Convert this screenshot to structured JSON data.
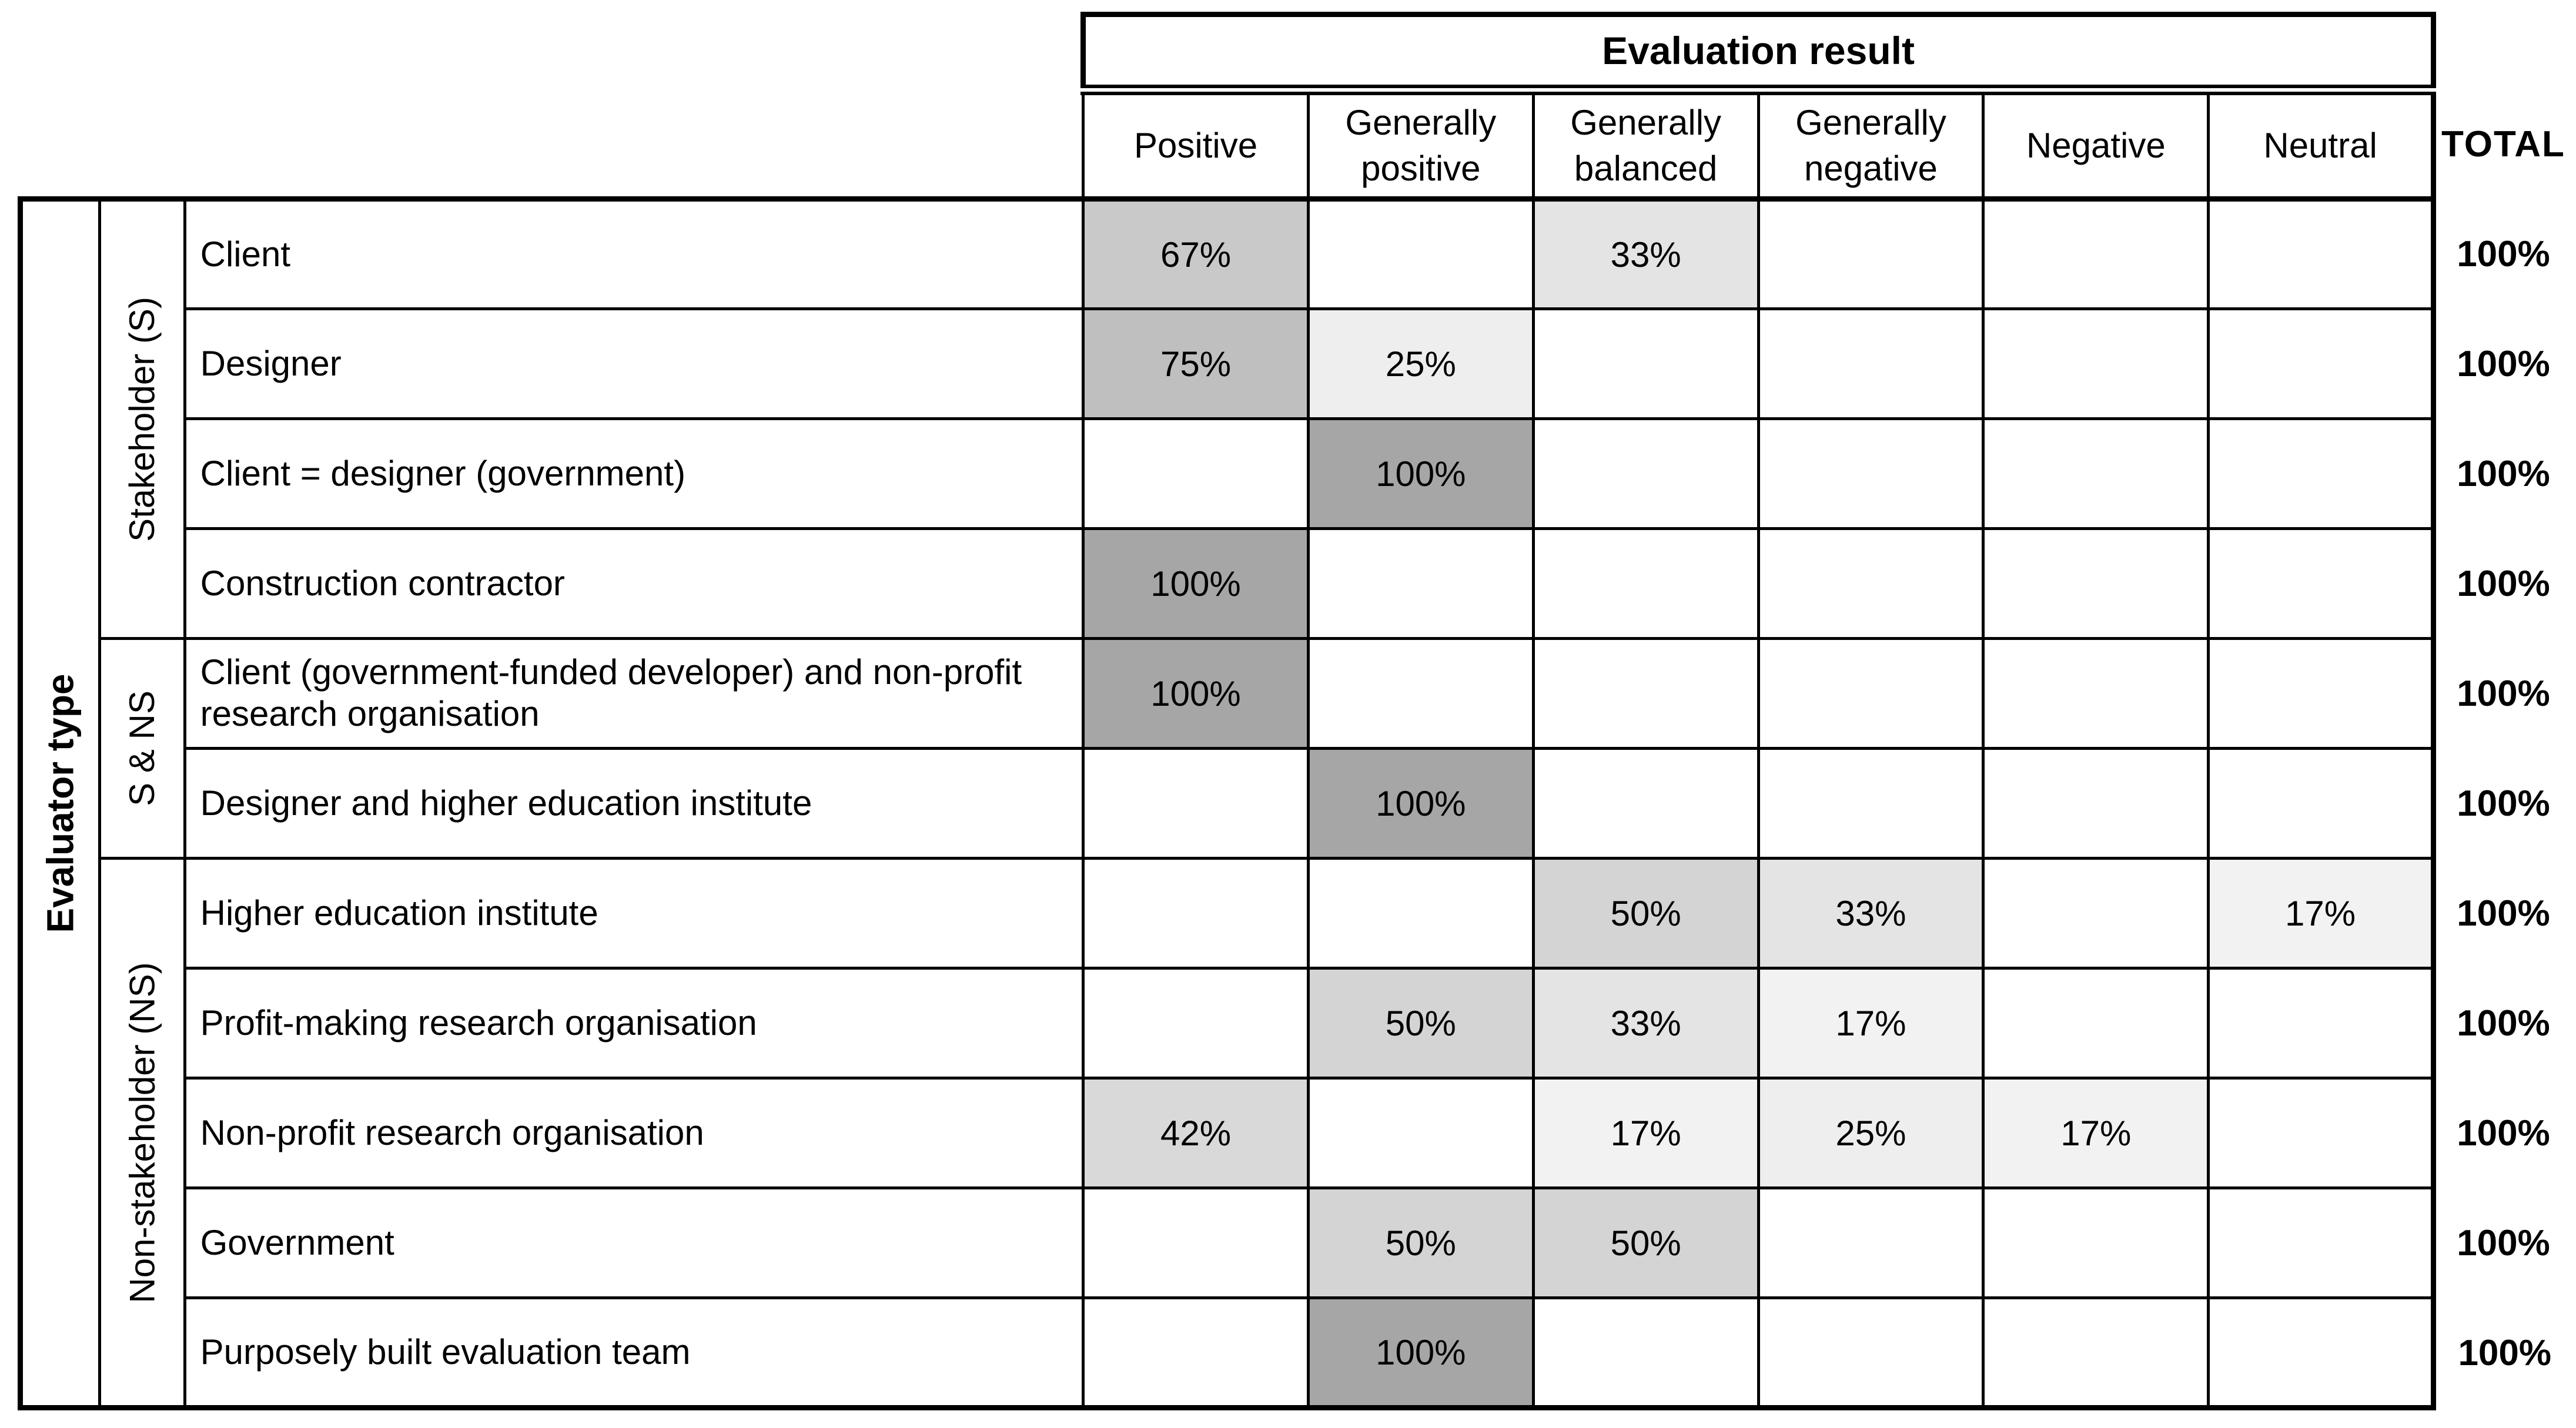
{
  "table": {
    "header": {
      "group_label": "Evaluation result",
      "columns": [
        "Positive",
        "Generally positive",
        "Generally balanced",
        "Generally negative",
        "Negative",
        "Neutral"
      ],
      "total_label": "TOTAL"
    },
    "row_axis": {
      "title": "Evaluator type",
      "groups": [
        {
          "label": "Stakeholder (S)",
          "rows": 4
        },
        {
          "label": "S & NS",
          "rows": 2
        },
        {
          "label": "Non-stakeholder (NS)",
          "rows": 5
        }
      ]
    },
    "rows": [
      {
        "label": "Client",
        "group": "Stakeholder (S)",
        "cells": [
          {
            "value": "67%",
            "bg": "#c9c9c9"
          },
          null,
          {
            "value": "33%",
            "bg": "#e4e4e4"
          },
          null,
          null,
          null
        ],
        "total": "100%"
      },
      {
        "label": "Designer",
        "group": "Stakeholder (S)",
        "cells": [
          {
            "value": "75%",
            "bg": "#bfbfbf"
          },
          {
            "value": "25%",
            "bg": "#eeeeee"
          },
          null,
          null,
          null,
          null
        ],
        "total": "100%"
      },
      {
        "label": "Client = designer (government)",
        "group": "Stakeholder (S)",
        "cells": [
          null,
          {
            "value": "100%",
            "bg": "#a6a6a6"
          },
          null,
          null,
          null,
          null
        ],
        "total": "100%"
      },
      {
        "label": "Construction contractor",
        "group": "Stakeholder (S)",
        "cells": [
          {
            "value": "100%",
            "bg": "#a6a6a6"
          },
          null,
          null,
          null,
          null,
          null
        ],
        "total": "100%"
      },
      {
        "label": "Client (government-funded developer) and non-profit research organisation",
        "group": "S & NS",
        "cells": [
          {
            "value": "100%",
            "bg": "#a6a6a6"
          },
          null,
          null,
          null,
          null,
          null
        ],
        "total": "100%"
      },
      {
        "label": "Designer and higher education institute",
        "group": "S & NS",
        "cells": [
          null,
          {
            "value": "100%",
            "bg": "#a6a6a6"
          },
          null,
          null,
          null,
          null
        ],
        "total": "100%"
      },
      {
        "label": "Higher education institute",
        "group": "Non-stakeholder (NS)",
        "cells": [
          null,
          null,
          {
            "value": "50%",
            "bg": "#d4d4d4"
          },
          {
            "value": "33%",
            "bg": "#e4e4e4"
          },
          null,
          {
            "value": "17%",
            "bg": "#f2f2f2"
          }
        ],
        "total": "100%"
      },
      {
        "label": "Profit-making research organisation",
        "group": "Non-stakeholder (NS)",
        "cells": [
          null,
          {
            "value": "50%",
            "bg": "#d4d4d4"
          },
          {
            "value": "33%",
            "bg": "#e4e4e4"
          },
          {
            "value": "17%",
            "bg": "#f2f2f2"
          },
          null,
          null
        ],
        "total": "100%"
      },
      {
        "label": "Non-profit research organisation",
        "group": "Non-stakeholder (NS)",
        "cells": [
          {
            "value": "42%",
            "bg": "#d9d9d9"
          },
          null,
          {
            "value": "17%",
            "bg": "#f2f2f2"
          },
          {
            "value": "25%",
            "bg": "#eeeeee"
          },
          {
            "value": "17%",
            "bg": "#f2f2f2"
          },
          null
        ],
        "total": "100%"
      },
      {
        "label": "Government",
        "group": "Non-stakeholder (NS)",
        "cells": [
          null,
          {
            "value": "50%",
            "bg": "#d4d4d4"
          },
          {
            "value": "50%",
            "bg": "#d4d4d4"
          },
          null,
          null,
          null
        ],
        "total": "100%"
      },
      {
        "label": "Purposely built evaluation team",
        "group": "Non-stakeholder (NS)",
        "cells": [
          null,
          {
            "value": "100%",
            "bg": "#a6a6a6"
          },
          null,
          null,
          null,
          null
        ],
        "total": "100%"
      }
    ]
  },
  "colors": {
    "border": "#000000",
    "background": "#ffffff",
    "text": "#000000",
    "shade_100": "#a6a6a6",
    "shade_75": "#bfbfbf",
    "shade_67": "#c9c9c9",
    "shade_50": "#d4d4d4",
    "shade_42": "#d9d9d9",
    "shade_33": "#e4e4e4",
    "shade_25": "#eeeeee",
    "shade_17": "#f2f2f2"
  },
  "chart_data": {
    "type": "table",
    "title": "Evaluation result by evaluator type (row percentages)",
    "columns": [
      "Positive",
      "Generally positive",
      "Generally balanced",
      "Generally negative",
      "Negative",
      "Neutral",
      "TOTAL"
    ],
    "row_groups": [
      "Stakeholder (S)",
      "Stakeholder (S)",
      "Stakeholder (S)",
      "Stakeholder (S)",
      "S & NS",
      "S & NS",
      "Non-stakeholder (NS)",
      "Non-stakeholder (NS)",
      "Non-stakeholder (NS)",
      "Non-stakeholder (NS)",
      "Non-stakeholder (NS)"
    ],
    "row_labels": [
      "Client",
      "Designer",
      "Client = designer (government)",
      "Construction contractor",
      "Client (government-funded developer) and non-profit research organisation",
      "Designer and higher education institute",
      "Higher education institute",
      "Profit-making research organisation",
      "Non-profit research organisation",
      "Government",
      "Purposely built evaluation team"
    ],
    "values": [
      [
        67,
        null,
        33,
        null,
        null,
        null,
        100
      ],
      [
        75,
        25,
        null,
        null,
        null,
        null,
        100
      ],
      [
        null,
        100,
        null,
        null,
        null,
        null,
        100
      ],
      [
        100,
        null,
        null,
        null,
        null,
        null,
        100
      ],
      [
        100,
        null,
        null,
        null,
        null,
        null,
        100
      ],
      [
        null,
        100,
        null,
        null,
        null,
        null,
        100
      ],
      [
        null,
        null,
        50,
        33,
        null,
        17,
        100
      ],
      [
        null,
        50,
        33,
        17,
        null,
        null,
        100
      ],
      [
        42,
        null,
        17,
        25,
        17,
        null,
        100
      ],
      [
        null,
        50,
        50,
        null,
        null,
        null,
        100
      ],
      [
        null,
        100,
        null,
        null,
        null,
        null,
        100
      ]
    ]
  }
}
